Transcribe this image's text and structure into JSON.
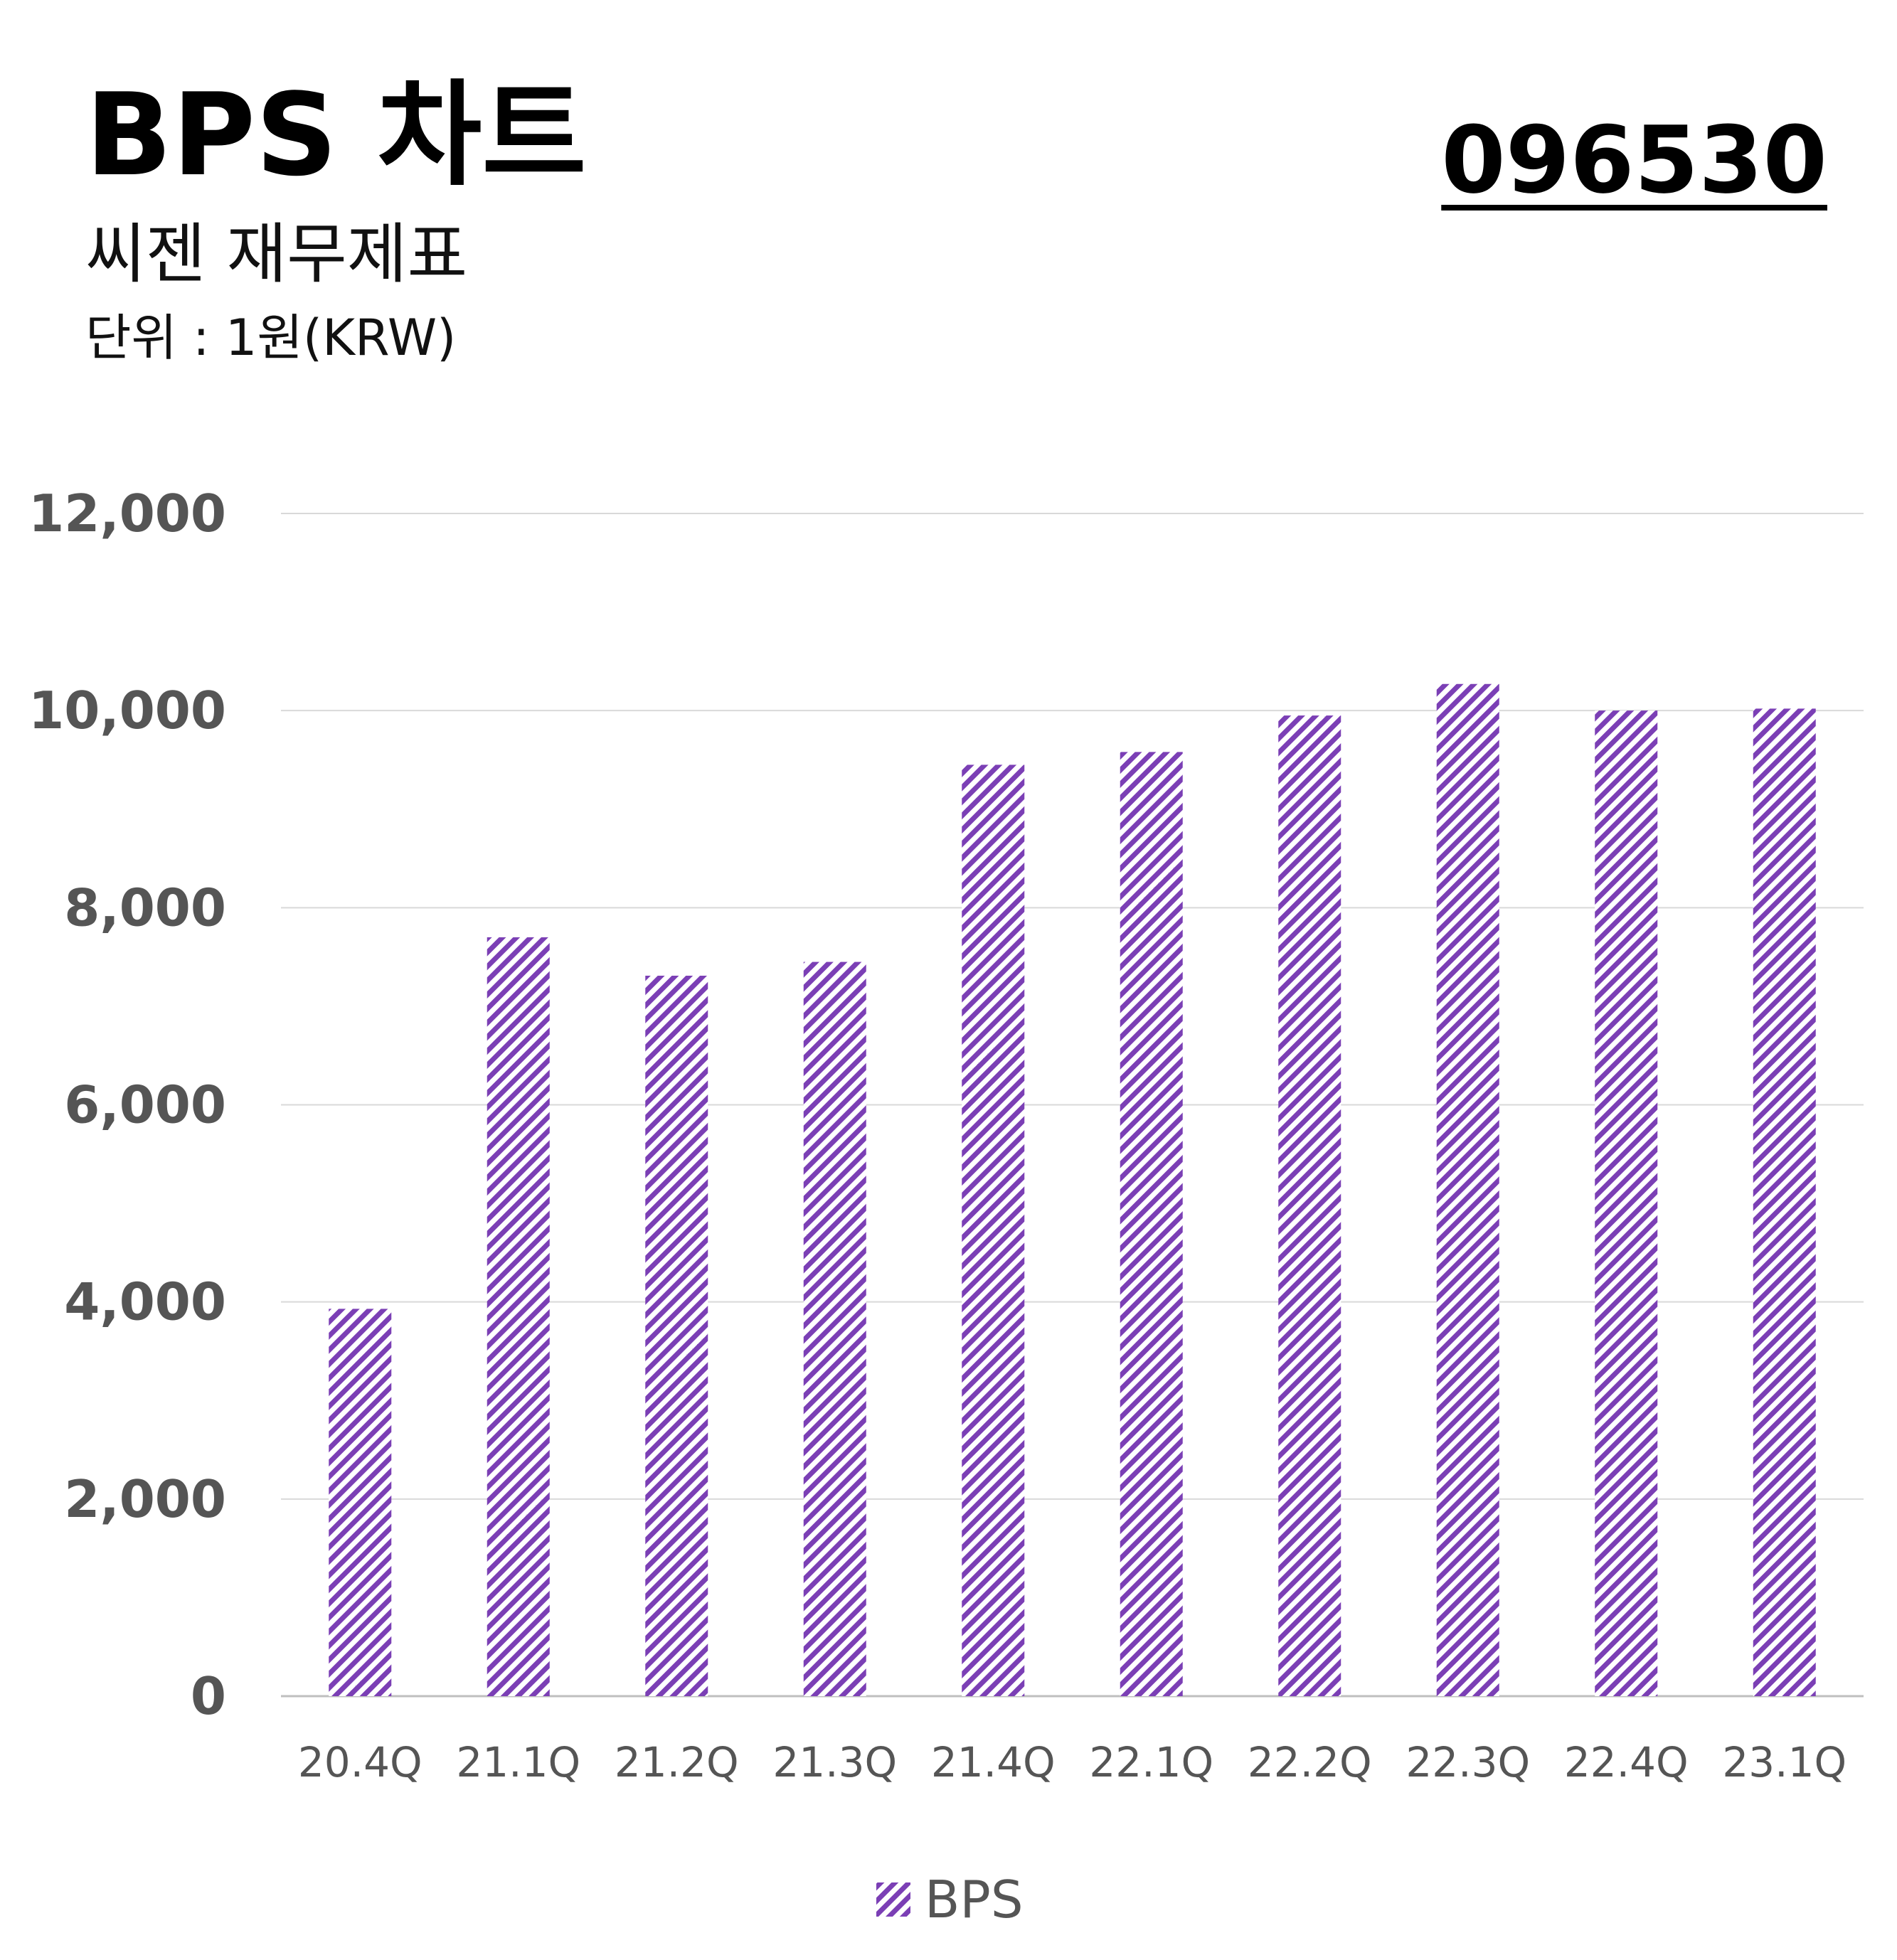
{
  "header": {
    "title": "BPS 차트",
    "subtitle": "씨젠 재무제표",
    "unit": "단위 : 1원(KRW)",
    "code": "096530"
  },
  "colors": {
    "bar": "#7b3fb5",
    "grid": "#d9d9d9",
    "axis": "#bfbfbf",
    "text": "#555555"
  },
  "chart_data": {
    "type": "bar",
    "categories": [
      "20.4Q",
      "21.1Q",
      "21.2Q",
      "21.3Q",
      "21.4Q",
      "22.1Q",
      "22.2Q",
      "22.3Q",
      "22.4Q",
      "23.1Q"
    ],
    "series": [
      {
        "name": "BPS",
        "values": [
          3930,
          7700,
          7310,
          7450,
          9450,
          9580,
          9950,
          10270,
          10000,
          10020
        ]
      }
    ],
    "ylim": [
      0,
      12000
    ],
    "yticks": [
      0,
      2000,
      4000,
      6000,
      8000,
      10000,
      12000
    ],
    "ytick_labels": [
      "0",
      "2,000",
      "4,000",
      "6,000",
      "8,000",
      "10,000",
      "12,000"
    ],
    "grid": true,
    "legend": "bottom-center",
    "bar_fill": "diagonal-hatch"
  }
}
